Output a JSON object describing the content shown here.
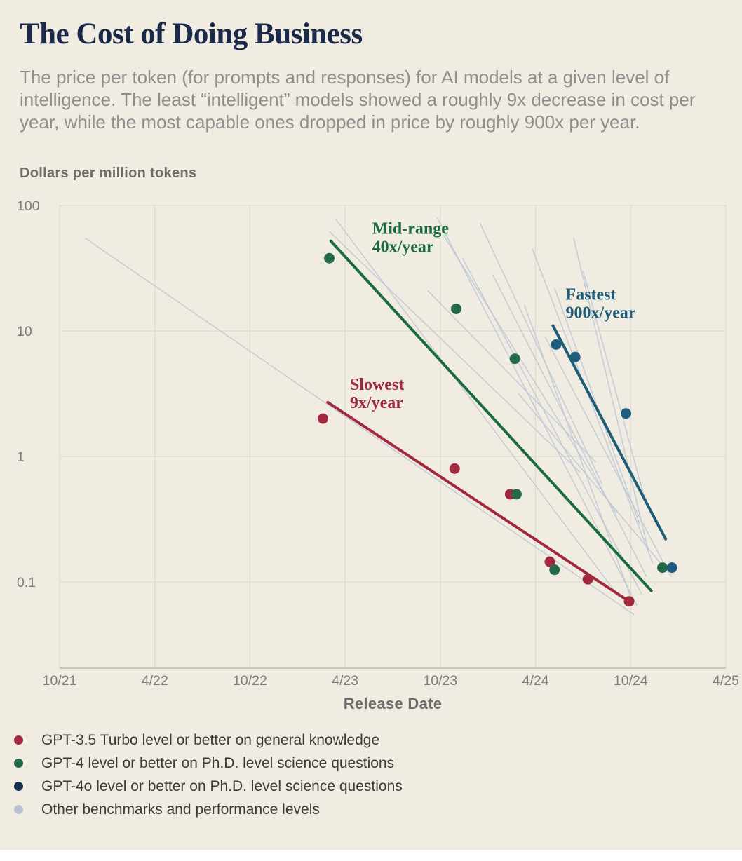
{
  "title": "The Cost of Doing Business",
  "subtitle": "The price per token (for prompts and responses) for AI models at a given level of intelligence. The least “intelligent” models showed a roughly 9x decrease in cost per year, while the most capable ones dropped in price by roughly 900x per year.",
  "chart_data": {
    "type": "scatter",
    "title": "The Cost of Doing Business",
    "xlabel": "Release Date",
    "ylabel": "Dollars per million tokens",
    "y_scale": "log",
    "x_unit": "months since 10/21",
    "x_range": [
      0,
      42
    ],
    "y_range_log": [
      -1.687,
      2
    ],
    "grid": true,
    "x_ticks": [
      {
        "pos": 0,
        "label": "10/21"
      },
      {
        "pos": 6,
        "label": "4/22"
      },
      {
        "pos": 12,
        "label": "10/22"
      },
      {
        "pos": 18,
        "label": "4/23"
      },
      {
        "pos": 24,
        "label": "10/23"
      },
      {
        "pos": 30,
        "label": "4/24"
      },
      {
        "pos": 36,
        "label": "10/24"
      },
      {
        "pos": 42,
        "label": "4/25"
      }
    ],
    "y_ticks": [
      {
        "value": 100,
        "label": "100"
      },
      {
        "value": 10,
        "label": "10"
      },
      {
        "value": 1,
        "label": "1"
      },
      {
        "value": 0.1,
        "label": "0.1"
      }
    ],
    "series": [
      {
        "name": "GPT-3.5 Turbo level or better on general knowledge",
        "color": "#a2283e",
        "points": [
          [
            16.6,
            2.0
          ],
          [
            24.9,
            0.8
          ],
          [
            28.4,
            0.5
          ],
          [
            30.9,
            0.145
          ],
          [
            33.3,
            0.105
          ],
          [
            35.9,
            0.07
          ]
        ]
      },
      {
        "name": "GPT-4 level or better on Ph.D. level science questions",
        "color": "#23694a",
        "points": [
          [
            17.0,
            38
          ],
          [
            25.0,
            15
          ],
          [
            28.7,
            6.0
          ],
          [
            28.8,
            0.5
          ],
          [
            31.2,
            0.125
          ],
          [
            38.0,
            0.13
          ]
        ]
      },
      {
        "name": "GPT-4o level or better on Ph.D. level science questions",
        "color": "#1e5d7d",
        "points": [
          [
            31.3,
            7.8
          ],
          [
            32.5,
            6.2
          ],
          [
            35.7,
            2.2
          ],
          [
            38.6,
            0.13
          ]
        ]
      }
    ],
    "trend_lines": [
      {
        "name": "Slowest 9x/year",
        "color": "#a2283e",
        "from": [
          16.9,
          2.7
        ],
        "to": [
          35.9,
          0.07
        ]
      },
      {
        "name": "Mid-range 40x/year",
        "color": "#1a6b3d",
        "from": [
          17.1,
          52
        ],
        "to": [
          37.3,
          0.085
        ]
      },
      {
        "name": "Fastest 900x/year",
        "color": "#1d5d78",
        "from": [
          31.1,
          11
        ],
        "to": [
          38.2,
          0.22
        ]
      }
    ],
    "annotations": [
      {
        "lines": [
          "Mid-range",
          "40x/year"
        ],
        "color": "#1a6b3d",
        "x": 19.7,
        "y": 77
      },
      {
        "lines": [
          "Fastest",
          "900x/year"
        ],
        "color": "#1d5d78",
        "x": 31.9,
        "y": 23
      },
      {
        "lines": [
          "Slowest",
          "9x/year"
        ],
        "color": "#a2283e",
        "x": 18.3,
        "y": 4.4
      }
    ],
    "other_lines": {
      "name": "Other benchmarks and performance levels",
      "color": "#bcc6d4",
      "segments": [
        [
          1.6,
          55,
          36.2,
          0.055
        ],
        [
          17.4,
          78,
          35.3,
          0.075
        ],
        [
          17.0,
          62,
          32.8,
          0.75
        ],
        [
          23.8,
          80,
          36.4,
          0.065
        ],
        [
          24.2,
          58,
          35.1,
          0.35
        ],
        [
          25.4,
          38,
          36.7,
          0.08
        ],
        [
          26.5,
          72,
          34.2,
          0.6
        ],
        [
          27.3,
          28,
          37.0,
          0.11
        ],
        [
          29.3,
          16,
          36.2,
          0.065
        ],
        [
          29.8,
          45,
          37.4,
          0.14
        ],
        [
          30.6,
          9,
          38.3,
          0.125
        ],
        [
          31.2,
          22,
          36.6,
          0.28
        ],
        [
          28.9,
          3.2,
          38.6,
          0.11
        ],
        [
          32.4,
          55,
          37.1,
          0.18
        ],
        [
          33.0,
          30,
          36.9,
          0.45
        ],
        [
          23.2,
          21,
          33.8,
          0.9
        ]
      ]
    }
  },
  "legend": {
    "items": [
      {
        "label": "GPT-3.5 Turbo level or better on general knowledge",
        "color": "#a2283e"
      },
      {
        "label": "GPT-4 level or better on Ph.D. level science questions",
        "color": "#23694a"
      },
      {
        "label": "GPT-4o level or better on Ph.D. level science questions",
        "color": "#16304f"
      },
      {
        "label": "Other benchmarks and performance levels",
        "color": "#b9c2d1"
      }
    ]
  },
  "colors": {
    "background": "#f1ece2",
    "title": "#1b2a4a",
    "subtitle": "#8f8f8f",
    "axis_text": "#7d7d7d",
    "grid": "#dcd6c9",
    "axis_line": "#c0baac"
  }
}
